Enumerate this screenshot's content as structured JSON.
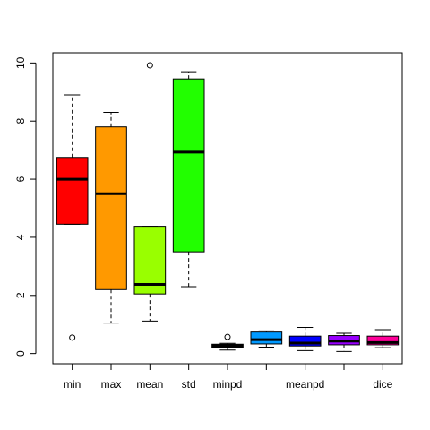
{
  "chart_data": {
    "type": "boxplot",
    "title": "",
    "xlabel": "",
    "ylabel": "",
    "ylim": [
      -0.35,
      10.35
    ],
    "yticks": [
      0,
      2,
      4,
      6,
      8,
      10
    ],
    "grid": false,
    "legend": "none",
    "categories": [
      "min",
      "max",
      "mean",
      "std",
      "minpd",
      "",
      "meanpd",
      "",
      "dice"
    ],
    "boxes": [
      {
        "name": "min",
        "color": "#ff0000",
        "lower_whisker": 4.45,
        "q1": 4.45,
        "median": 6.0,
        "q3": 6.75,
        "upper_whisker": 8.9,
        "outliers": [
          0.55
        ]
      },
      {
        "name": "max",
        "color": "#ff9900",
        "lower_whisker": 1.05,
        "q1": 2.2,
        "median": 5.5,
        "q3": 7.8,
        "upper_whisker": 8.3,
        "outliers": []
      },
      {
        "name": "mean",
        "color": "#99ff00",
        "lower_whisker": 1.12,
        "q1": 2.05,
        "median": 2.38,
        "q3": 4.38,
        "upper_whisker": 4.38,
        "outliers": [
          9.92
        ]
      },
      {
        "name": "std",
        "color": "#22ff00",
        "lower_whisker": 2.3,
        "q1": 3.5,
        "median": 6.93,
        "q3": 9.45,
        "upper_whisker": 9.7,
        "outliers": []
      },
      {
        "name": "minpd",
        "color": "#00ff66",
        "lower_whisker": 0.12,
        "q1": 0.22,
        "median": 0.27,
        "q3": 0.32,
        "upper_whisker": 0.35,
        "outliers": [
          0.57
        ]
      },
      {
        "name": "",
        "color": "#0099ff",
        "lower_whisker": 0.22,
        "q1": 0.33,
        "median": 0.48,
        "q3": 0.74,
        "upper_whisker": 0.78,
        "outliers": []
      },
      {
        "name": "meanpd",
        "color": "#0000ff",
        "lower_whisker": 0.1,
        "q1": 0.26,
        "median": 0.36,
        "q3": 0.6,
        "upper_whisker": 0.9,
        "outliers": []
      },
      {
        "name": "",
        "color": "#9900ff",
        "lower_whisker": 0.07,
        "q1": 0.3,
        "median": 0.43,
        "q3": 0.62,
        "upper_whisker": 0.7,
        "outliers": []
      },
      {
        "name": "dice",
        "color": "#ff0099",
        "lower_whisker": 0.2,
        "q1": 0.3,
        "median": 0.38,
        "q3": 0.6,
        "upper_whisker": 0.82,
        "outliers": []
      }
    ]
  }
}
